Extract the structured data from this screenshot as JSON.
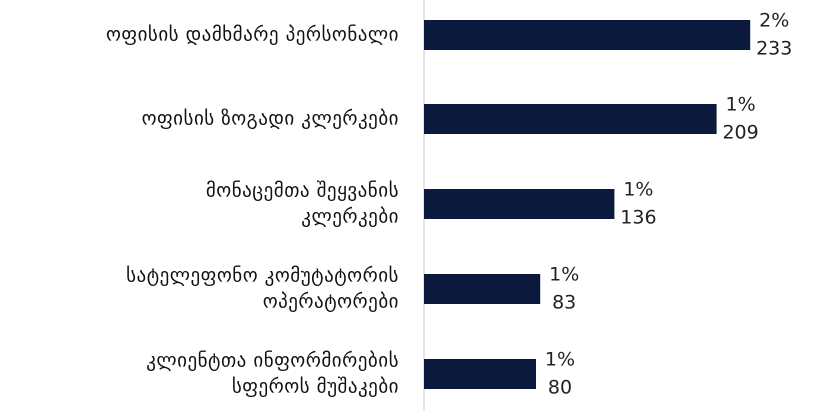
{
  "chart_data": {
    "type": "bar",
    "orientation": "horizontal",
    "title": "",
    "xlabel": "",
    "ylabel": "",
    "grid": false,
    "legend": "none",
    "bar_color": "#0b1a3c",
    "categories": [
      "ოფისის დამხმარე პერსონალი",
      "ოფისის ზოგადი კლერკები",
      "მონაცემთა შეყვანის კლერკები",
      "სატელეფონო კომუტატორის ოპერატორები",
      "კლიენტთა ინფორმირების სფეროს მუშაკები"
    ],
    "category_lines": [
      [
        "ოფისის დამხმარე პერსონალი"
      ],
      [
        "ოფისის ზოგადი კლერკები"
      ],
      [
        "მონაცემთა შეყვანის",
        "კლერკები"
      ],
      [
        "სატელეფონო კომუტატორის",
        "ოპერატორები"
      ],
      [
        "კლიენტთა ინფორმირების",
        "სფეროს მუშაკები"
      ]
    ],
    "values": [
      233,
      209,
      136,
      83,
      80
    ],
    "percent_labels": [
      "2%",
      "1%",
      "1%",
      "1%",
      "1%"
    ],
    "value_labels": [
      "233",
      "209",
      "136",
      "83",
      "80"
    ],
    "xlim": [
      0,
      240
    ]
  }
}
